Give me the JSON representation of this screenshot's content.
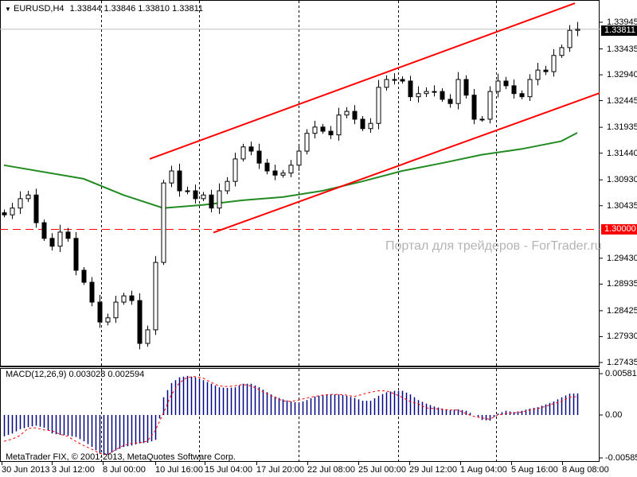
{
  "header": {
    "symbol_line": "EURUSD,H4",
    "ohlc": "1.33844 1.33846 1.33810 1.33811"
  },
  "watermark": "Портал для трейдеров - ForTrader.ru",
  "copyright": "MetaTrader FIX, © 2001-2013, MetaQuotes Software Corp.",
  "colors": {
    "bull_bear": "#000000",
    "trend_line": "#ff0000",
    "ma": "#228b22",
    "macd_hist": "#000080",
    "macd_signal": "#ff0000",
    "grid": "#000000",
    "current_price_line": "#c0c0c0"
  },
  "chart_data": [
    {
      "type": "candlestick",
      "title": "EURUSD,H4",
      "ylim": [
        1.27435,
        1.33945
      ],
      "y_ticks": [
        "1.33945",
        "1.33435",
        "1.32940",
        "1.32445",
        "1.31935",
        "1.31440",
        "1.30930",
        "1.30435",
        "1.29430",
        "1.28935",
        "1.28425",
        "1.27930",
        "1.27435"
      ],
      "x_ticks": [
        "30 Jun 2013",
        "3 Jul 12:00",
        "8 Jul 00:00",
        "10 Jul 16:00",
        "15 Jul 04:00",
        "17 Jul 20:00",
        "22 Jul 08:00",
        "25 Jul 00:00",
        "29 Jul 12:00",
        "1 Aug 04:00",
        "5 Aug 16:00",
        "8 Aug 08:00"
      ],
      "grid": "vertical dashed",
      "closes": [
        1.3026,
        1.3039,
        1.3057,
        1.3064,
        1.3011,
        1.2981,
        1.2966,
        1.2993,
        1.2981,
        1.292,
        1.2897,
        1.2859,
        1.2821,
        1.2829,
        1.2859,
        1.2871,
        1.2862,
        1.278,
        1.2806,
        1.2935,
        1.3087,
        1.311,
        1.3072,
        1.3072,
        1.3057,
        1.3064,
        1.3039,
        1.3072,
        1.309,
        1.3133,
        1.3156,
        1.3148,
        1.3125,
        1.311,
        1.3102,
        1.3106,
        1.3121,
        1.3148,
        1.3182,
        1.3194,
        1.3186,
        1.3179,
        1.3217,
        1.3224,
        1.3209,
        1.3191,
        1.3201,
        1.327,
        1.3285,
        1.3285,
        1.3282,
        1.3252,
        1.3258,
        1.3262,
        1.3262,
        1.3247,
        1.3239,
        1.3285,
        1.3255,
        1.3209,
        1.3209,
        1.3262,
        1.3282,
        1.3273,
        1.3258,
        1.3252,
        1.3285,
        1.3303,
        1.33,
        1.3331,
        1.3346,
        1.3379,
        1.33811
      ],
      "moving_average": [
        [
          0,
          1.3121
        ],
        [
          10,
          1.3095
        ],
        [
          15,
          1.3064
        ],
        [
          20,
          1.3039
        ],
        [
          25,
          1.3045
        ],
        [
          30,
          1.3054
        ],
        [
          35,
          1.306
        ],
        [
          40,
          1.3072
        ],
        [
          45,
          1.309
        ],
        [
          50,
          1.311
        ],
        [
          55,
          1.3125
        ],
        [
          60,
          1.3141
        ],
        [
          65,
          1.3152
        ],
        [
          70,
          1.3167
        ],
        [
          72,
          1.3183
        ]
      ],
      "trend_lines": [
        {
          "from": [
            18.3,
            1.3133
          ],
          "to": [
            71.7,
            1.3431
          ]
        },
        {
          "from": [
            26.3,
            1.2992
          ],
          "to": [
            75.0,
            1.3259
          ]
        }
      ],
      "horizontal_level": {
        "value": 1.3,
        "label": "1.30000"
      },
      "current_price": {
        "value": 1.33811,
        "label": "1.33811"
      }
    },
    {
      "type": "bar",
      "title": "MACD(12,26,9) 0.003028 0.002594",
      "ylim": [
        -0.005852,
        0.005819
      ],
      "y_ticks": [
        "0.005819",
        "0.00",
        "-0.005852"
      ],
      "histogram": [
        -0.003,
        -0.0026,
        -0.002,
        -0.0017,
        -0.0015,
        -0.0018,
        -0.0026,
        -0.0028,
        -0.0029,
        -0.0031,
        -0.0037,
        -0.0045,
        -0.0054,
        -0.0056,
        -0.005,
        -0.0045,
        -0.0043,
        -0.004,
        -0.0039,
        -0.0035,
        0.0025,
        0.0045,
        0.0053,
        0.0055,
        0.0053,
        0.0049,
        0.0044,
        0.0039,
        0.0038,
        0.0039,
        0.0044,
        0.0044,
        0.0039,
        0.0032,
        0.0026,
        0.0022,
        0.0019,
        0.0017,
        0.0021,
        0.0026,
        0.0028,
        0.0029,
        0.0029,
        0.0027,
        0.0024,
        0.002,
        0.002,
        0.0027,
        0.0032,
        0.0034,
        0.0034,
        0.0029,
        0.0021,
        0.0016,
        0.0012,
        0.0009,
        0.0007,
        0.0008,
        0.0006,
        0.0,
        -0.0007,
        -0.0008,
        0.0002,
        0.0006,
        0.0004,
        0.0006,
        0.0009,
        0.0011,
        0.0015,
        0.0019,
        0.0025,
        0.003,
        0.003028
      ],
      "signal": [
        -0.0037,
        -0.0034,
        -0.0029,
        -0.0019,
        -0.0018,
        -0.0021,
        -0.0022,
        -0.0027,
        -0.003,
        -0.0037,
        -0.0043,
        -0.0048,
        -0.0054,
        -0.0056,
        -0.0049,
        -0.0043,
        -0.004,
        -0.0039,
        -0.0037,
        -0.0022,
        0.0002,
        0.0028,
        0.0045,
        0.0053,
        0.0054,
        0.0052,
        0.0046,
        0.0041,
        0.004,
        0.0041,
        0.0043,
        0.0041,
        0.0036,
        0.003,
        0.0025,
        0.002,
        0.0019,
        0.0021,
        0.0024,
        0.0026,
        0.0028,
        0.0029,
        0.0029,
        0.0028,
        0.0026,
        0.0029,
        0.0032,
        0.0034,
        0.0034,
        0.003,
        0.0025,
        0.0019,
        0.0016,
        0.001,
        0.0009,
        0.0008,
        0.0007,
        0.0007,
        0.0002,
        -0.0002,
        -0.0004,
        -0.0006,
        0.0,
        0.0002,
        0.0003,
        0.0004,
        0.0007,
        0.0009,
        0.0012,
        0.0016,
        0.0019,
        0.0025,
        0.002594
      ]
    }
  ]
}
